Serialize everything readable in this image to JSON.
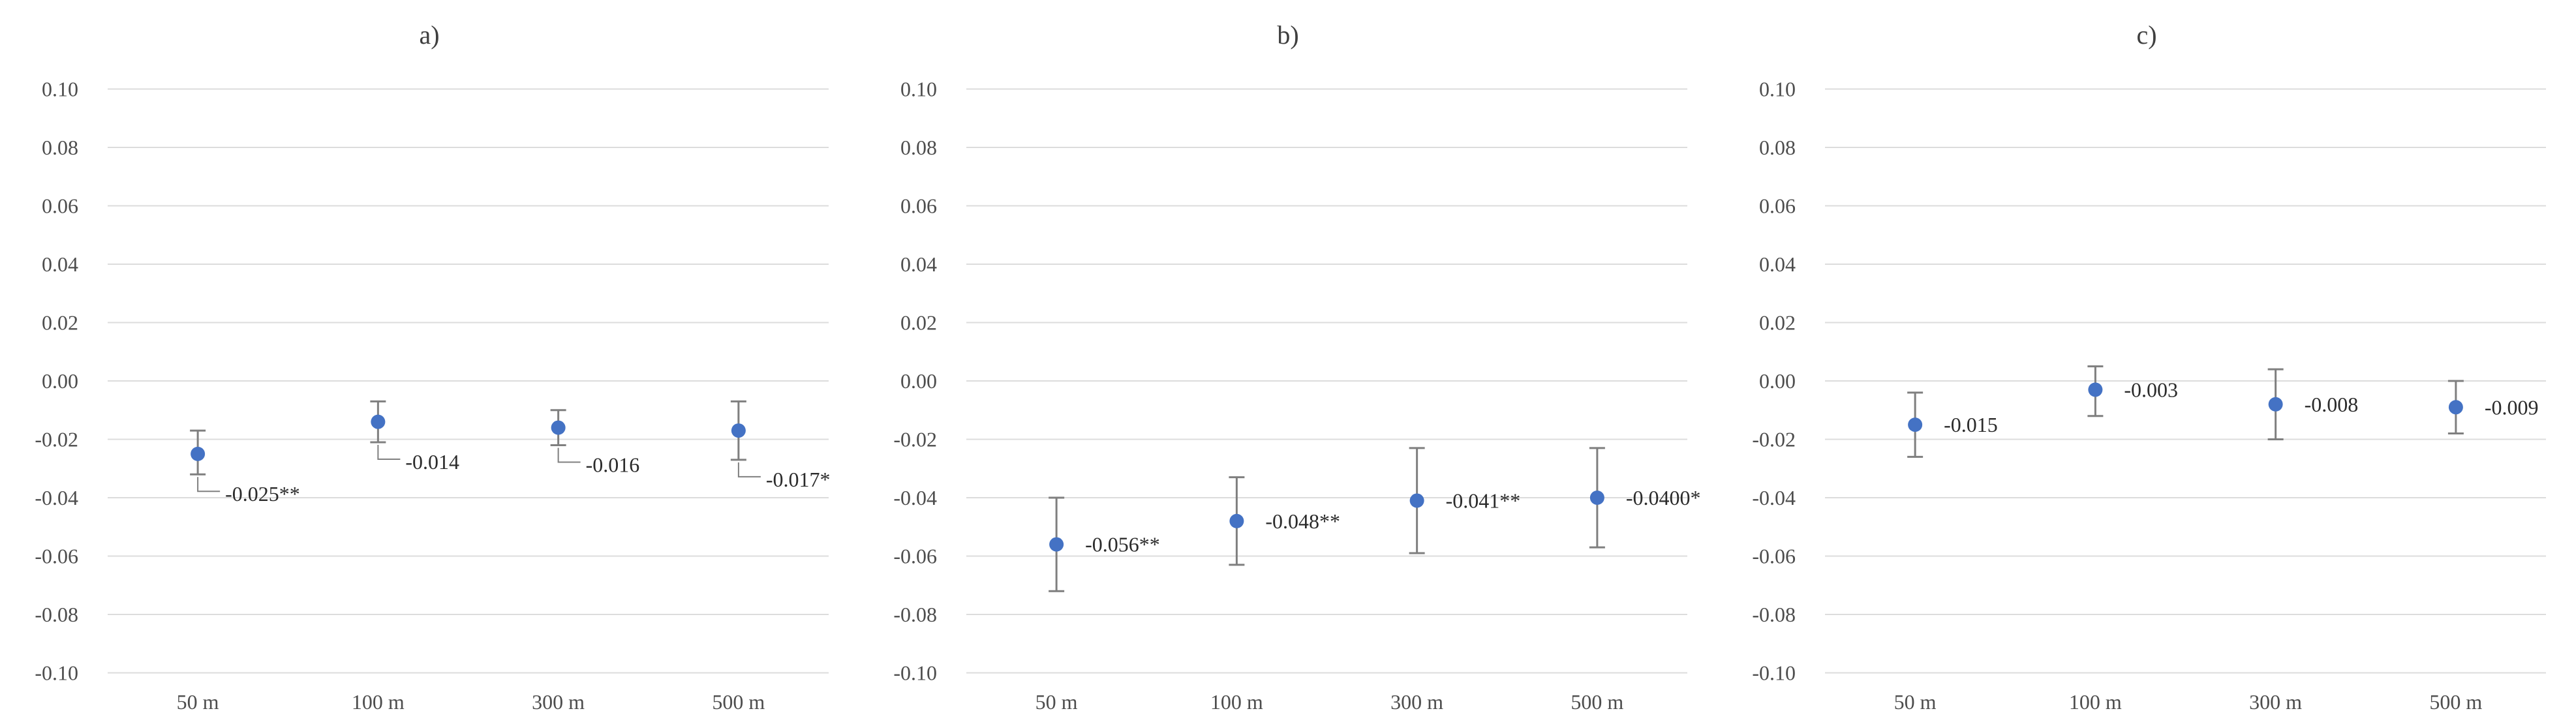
{
  "figure": {
    "kind": "three-panel coefficient plot with confidence intervals",
    "background": "#ffffff"
  },
  "chart_data": [
    {
      "type": "scatter",
      "title": "a)",
      "categories": [
        "50 m",
        "100 m",
        "300 m",
        "500 m"
      ],
      "series": [
        {
          "name": "point estimates",
          "values": [
            -0.025,
            -0.014,
            -0.016,
            -0.017
          ],
          "ci_low": [
            -0.032,
            -0.021,
            -0.022,
            -0.027
          ],
          "ci_high": [
            -0.017,
            -0.007,
            -0.01,
            -0.007
          ],
          "labels": [
            "-0.025**",
            "-0.014",
            "-0.016",
            "-0.017*"
          ]
        }
      ],
      "ylim": [
        -0.1,
        0.1
      ],
      "ytick_step": 0.02,
      "grid": true,
      "legend": "none",
      "label_placement": "below-leader",
      "marker_color": "#4472C4",
      "error_bar_color": "#7f7f7f",
      "gridline_color": "#dcdcdc",
      "axis_text_color": "#4d4d4d",
      "data_label_color": "#2b2b2b"
    },
    {
      "type": "scatter",
      "title": "b)",
      "categories": [
        "50 m",
        "100 m",
        "300 m",
        "500 m"
      ],
      "series": [
        {
          "name": "point estimates",
          "values": [
            -0.056,
            -0.048,
            -0.041,
            -0.04
          ],
          "ci_low": [
            -0.072,
            -0.063,
            -0.059,
            -0.057
          ],
          "ci_high": [
            -0.04,
            -0.033,
            -0.023,
            -0.023
          ],
          "labels": [
            "-0.056**",
            "-0.048**",
            "-0.041**",
            "-0.0400*"
          ]
        }
      ],
      "ylim": [
        -0.1,
        0.1
      ],
      "ytick_step": 0.02,
      "grid": true,
      "legend": "none",
      "label_placement": "right",
      "marker_color": "#4472C4",
      "error_bar_color": "#7f7f7f",
      "gridline_color": "#dcdcdc",
      "axis_text_color": "#4d4d4d",
      "data_label_color": "#2b2b2b"
    },
    {
      "type": "scatter",
      "title": "c)",
      "categories": [
        "50 m",
        "100 m",
        "300 m",
        "500 m"
      ],
      "series": [
        {
          "name": "point estimates",
          "values": [
            -0.015,
            -0.003,
            -0.008,
            -0.009
          ],
          "ci_low": [
            -0.026,
            -0.012,
            -0.02,
            -0.018
          ],
          "ci_high": [
            -0.004,
            0.005,
            0.004,
            0.0
          ],
          "labels": [
            "-0.015",
            "-0.003",
            "-0.008",
            "-0.009"
          ]
        }
      ],
      "ylim": [
        -0.1,
        0.1
      ],
      "ytick_step": 0.02,
      "grid": true,
      "legend": "none",
      "label_placement": "right",
      "marker_color": "#4472C4",
      "error_bar_color": "#7f7f7f",
      "gridline_color": "#dcdcdc",
      "axis_text_color": "#4d4d4d",
      "data_label_color": "#2b2b2b"
    }
  ]
}
